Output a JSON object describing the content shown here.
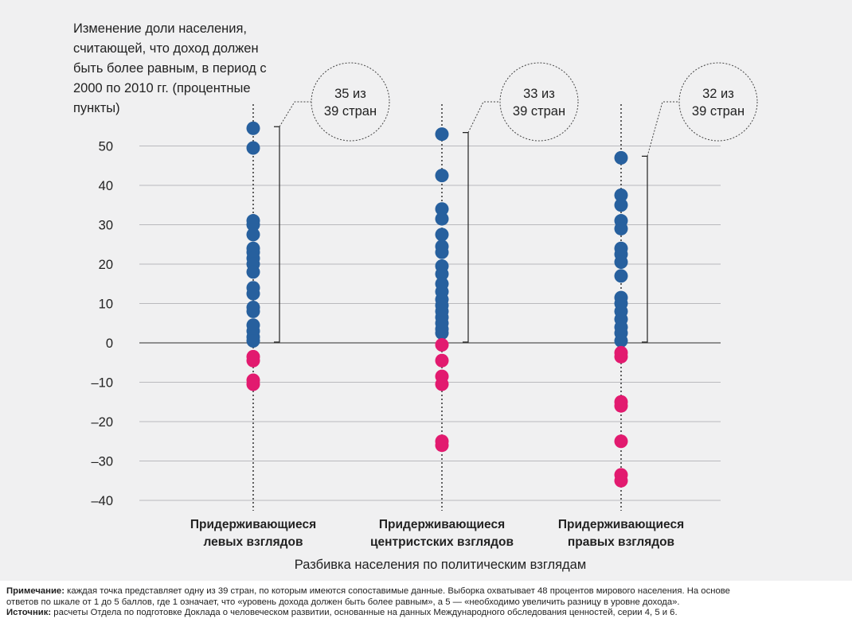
{
  "chart_data": {
    "type": "scatter",
    "ylabel": "Изменение доли населения, считающей, что доход должен быть более равным, в период с 2000 по 2010 гг. (процентные пункты)",
    "xlabel": "Разбивка населения по политическим взглядам",
    "ylim": [
      -45,
      58
    ],
    "yticks": [
      50,
      40,
      30,
      20,
      10,
      0,
      -10,
      -20,
      -30,
      -40
    ],
    "ytick_labels": [
      "50",
      "40",
      "30",
      "20",
      "10",
      "0",
      "–10",
      "–20",
      "–30",
      "–40"
    ],
    "grid": true,
    "colors": {
      "positive": "#27609e",
      "negative": "#e21a6f",
      "grid": "#b9b9bd",
      "panel": "#f0f0f1"
    },
    "categories": [
      {
        "line1": "Придерживающиеся",
        "line2": "левых взглядов"
      },
      {
        "line1": "Придерживающиеся",
        "line2": "центристских взглядов"
      },
      {
        "line1": "Придерживающиеся",
        "line2": "правых взглядов"
      }
    ],
    "series": [
      {
        "values": [
          54.5,
          49.5,
          31,
          30,
          27.5,
          24,
          23,
          21.5,
          20,
          18,
          14,
          12.5,
          9,
          8,
          4.5,
          3,
          1.5,
          0.5,
          -3.5,
          -4.5,
          -9.5,
          -10.5
        ],
        "annotation": {
          "line1": "35 из",
          "line2": "39 стран"
        }
      },
      {
        "values": [
          53,
          42.5,
          34,
          31.5,
          27.5,
          24.5,
          23,
          19.5,
          17.5,
          15,
          13,
          11,
          9.5,
          8,
          6.5,
          5,
          3.5,
          2.5,
          -0.5,
          -4.5,
          -8.5,
          -10.5,
          -25,
          -26
        ],
        "annotation": {
          "line1": "33 из",
          "line2": "39 стран"
        }
      },
      {
        "values": [
          47,
          37.5,
          35,
          31,
          29,
          24,
          22.5,
          20.5,
          17,
          11.5,
          10,
          8,
          6,
          4,
          2.5,
          0.5,
          -2.5,
          -3.5,
          -15,
          -16,
          -25,
          -33.5,
          -35
        ],
        "annotation": {
          "line1": "32 из",
          "line2": "39 стран"
        }
      }
    ]
  },
  "notes": {
    "note_label": "Примечание:",
    "note_text": " каждая точка представляет одну из 39 стран, по которым имеются сопоставимые данные. Выборка охватывает 48 процентов мирового населения. На основе",
    "note_text2": "ответов по шкале от 1 до 5 баллов, где 1 означает, что «уровень дохода должен быть более равным», а 5 — «необходимо увеличить разницу в уровне дохода».",
    "source_label": "Источник:",
    "source_text": " расчеты Отдела по подготовке Доклада о человеческом развитии, основанные на данных Международного обследования ценностей, серии 4, 5 и 6."
  }
}
